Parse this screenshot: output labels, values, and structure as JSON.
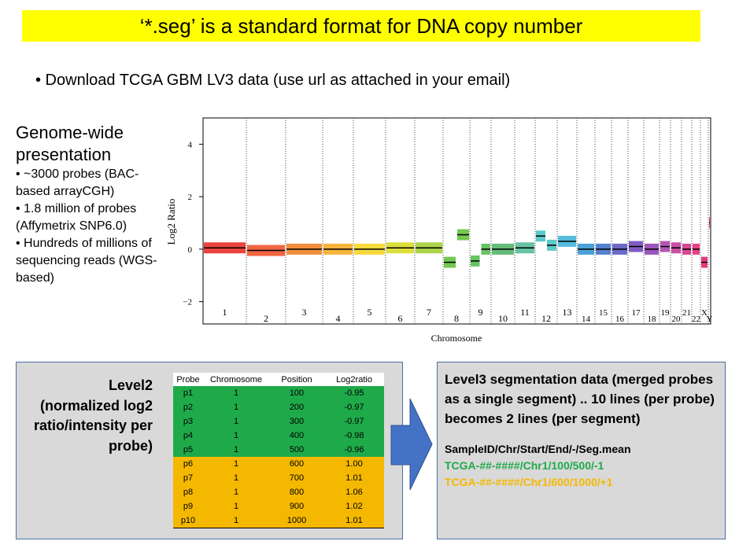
{
  "title": "‘*.seg’ is a standard format for DNA copy number",
  "bullet": "• Download TCGA GBM LV3 data (use url as attached in your email)",
  "left_text": {
    "heading": "Genome-wide presentation",
    "lines": [
      "• ~3000 probes (BAC-based arrayCGH)",
      "• 1.8 million of probes (Affymetrix SNP6.0)",
      "• Hundreds of millions of sequencing reads (WGS-based)"
    ]
  },
  "plot": {
    "type": "segments",
    "ylabel": "Log2 Ratio",
    "xlabel": "Chromosome",
    "ylim": [
      -2.85,
      5
    ],
    "yticks": [
      {
        "value": -2,
        "label": "−2"
      },
      0,
      2,
      4
    ],
    "chromosomes": [
      {
        "label": "1",
        "color": "#e8231f",
        "segments": [
          0.05
        ]
      },
      {
        "label": "2",
        "color": "#ee4a1e",
        "segments": [
          -0.05
        ]
      },
      {
        "label": "3",
        "color": "#f07a1a",
        "segments": [
          0
        ]
      },
      {
        "label": "4",
        "color": "#f5a818",
        "segments": [
          0
        ]
      },
      {
        "label": "5",
        "color": "#f5d21a",
        "segments": [
          0
        ]
      },
      {
        "label": "6",
        "color": "#d8d81a",
        "segments": [
          0.05
        ]
      },
      {
        "label": "7",
        "color": "#9ccc2a",
        "segments": [
          0.05
        ]
      },
      {
        "label": "8",
        "color": "#5cbd32",
        "segments": [
          -0.5,
          0.55
        ]
      },
      {
        "label": "9",
        "color": "#4cb848",
        "segments": [
          -0.45,
          0
        ]
      },
      {
        "label": "10",
        "color": "#48b060",
        "segments": [
          0
        ]
      },
      {
        "label": "11",
        "color": "#4cb890",
        "segments": [
          0.05
        ]
      },
      {
        "label": "12",
        "color": "#40c0c0",
        "segments": [
          0.5,
          0.15
        ]
      },
      {
        "label": "13",
        "color": "#38b0d8",
        "segments": [
          0.3
        ]
      },
      {
        "label": "14",
        "color": "#2a90d0",
        "segments": [
          0
        ]
      },
      {
        "label": "15",
        "color": "#3868c8",
        "segments": [
          0
        ]
      },
      {
        "label": "16",
        "color": "#5050c0",
        "segments": [
          0
        ]
      },
      {
        "label": "17",
        "color": "#6a40b8",
        "segments": [
          0.1
        ]
      },
      {
        "label": "18",
        "color": "#8a38b0",
        "segments": [
          0
        ]
      },
      {
        "label": "19",
        "color": "#a838a8",
        "segments": [
          0.1
        ]
      },
      {
        "label": "20",
        "color": "#c03098",
        "segments": [
          0.05
        ]
      },
      {
        "label": "21",
        "color": "#d02880",
        "segments": [
          0
        ]
      },
      {
        "label": "22",
        "color": "#e02070",
        "segments": [
          0
        ]
      },
      {
        "label": "X",
        "color": "#e0186a",
        "segments": [
          -0.5
        ]
      },
      {
        "label": "Y",
        "color": "#e01860",
        "segments": [
          1
        ]
      }
    ]
  },
  "level2": {
    "label": "Level2 (normalized log2 ratio/intensity per probe)",
    "table": {
      "columns": [
        "Probe",
        "Chromosome",
        "Position",
        "Log2ratio"
      ],
      "rows": [
        [
          "p1",
          "1",
          "100",
          "-0.95"
        ],
        [
          "p2",
          "1",
          "200",
          "-0.97"
        ],
        [
          "p3",
          "1",
          "300",
          "-0.97"
        ],
        [
          "p4",
          "1",
          "400",
          "-0.98"
        ],
        [
          "p5",
          "1",
          "500",
          "-0.96"
        ],
        [
          "p6",
          "1",
          "600",
          "1.00"
        ],
        [
          "p7",
          "1",
          "700",
          "1.01"
        ],
        [
          "p8",
          "1",
          "800",
          "1.06"
        ],
        [
          "p9",
          "1",
          "900",
          "1.02"
        ],
        [
          "p10",
          "1",
          "1000",
          "1.01"
        ]
      ]
    }
  },
  "level3": {
    "description": "Level3 segmentation data (merged probes as a single segment) .. 10 lines (per probe) becomes 2 lines (per segment)",
    "header": "SampleID/Chr/Start/End/-/Seg.mean",
    "lines": [
      "TCGA-##-####/Chr1/100/500/-1",
      "TCGA-##-####/Chr1/600/1000/+1"
    ]
  }
}
